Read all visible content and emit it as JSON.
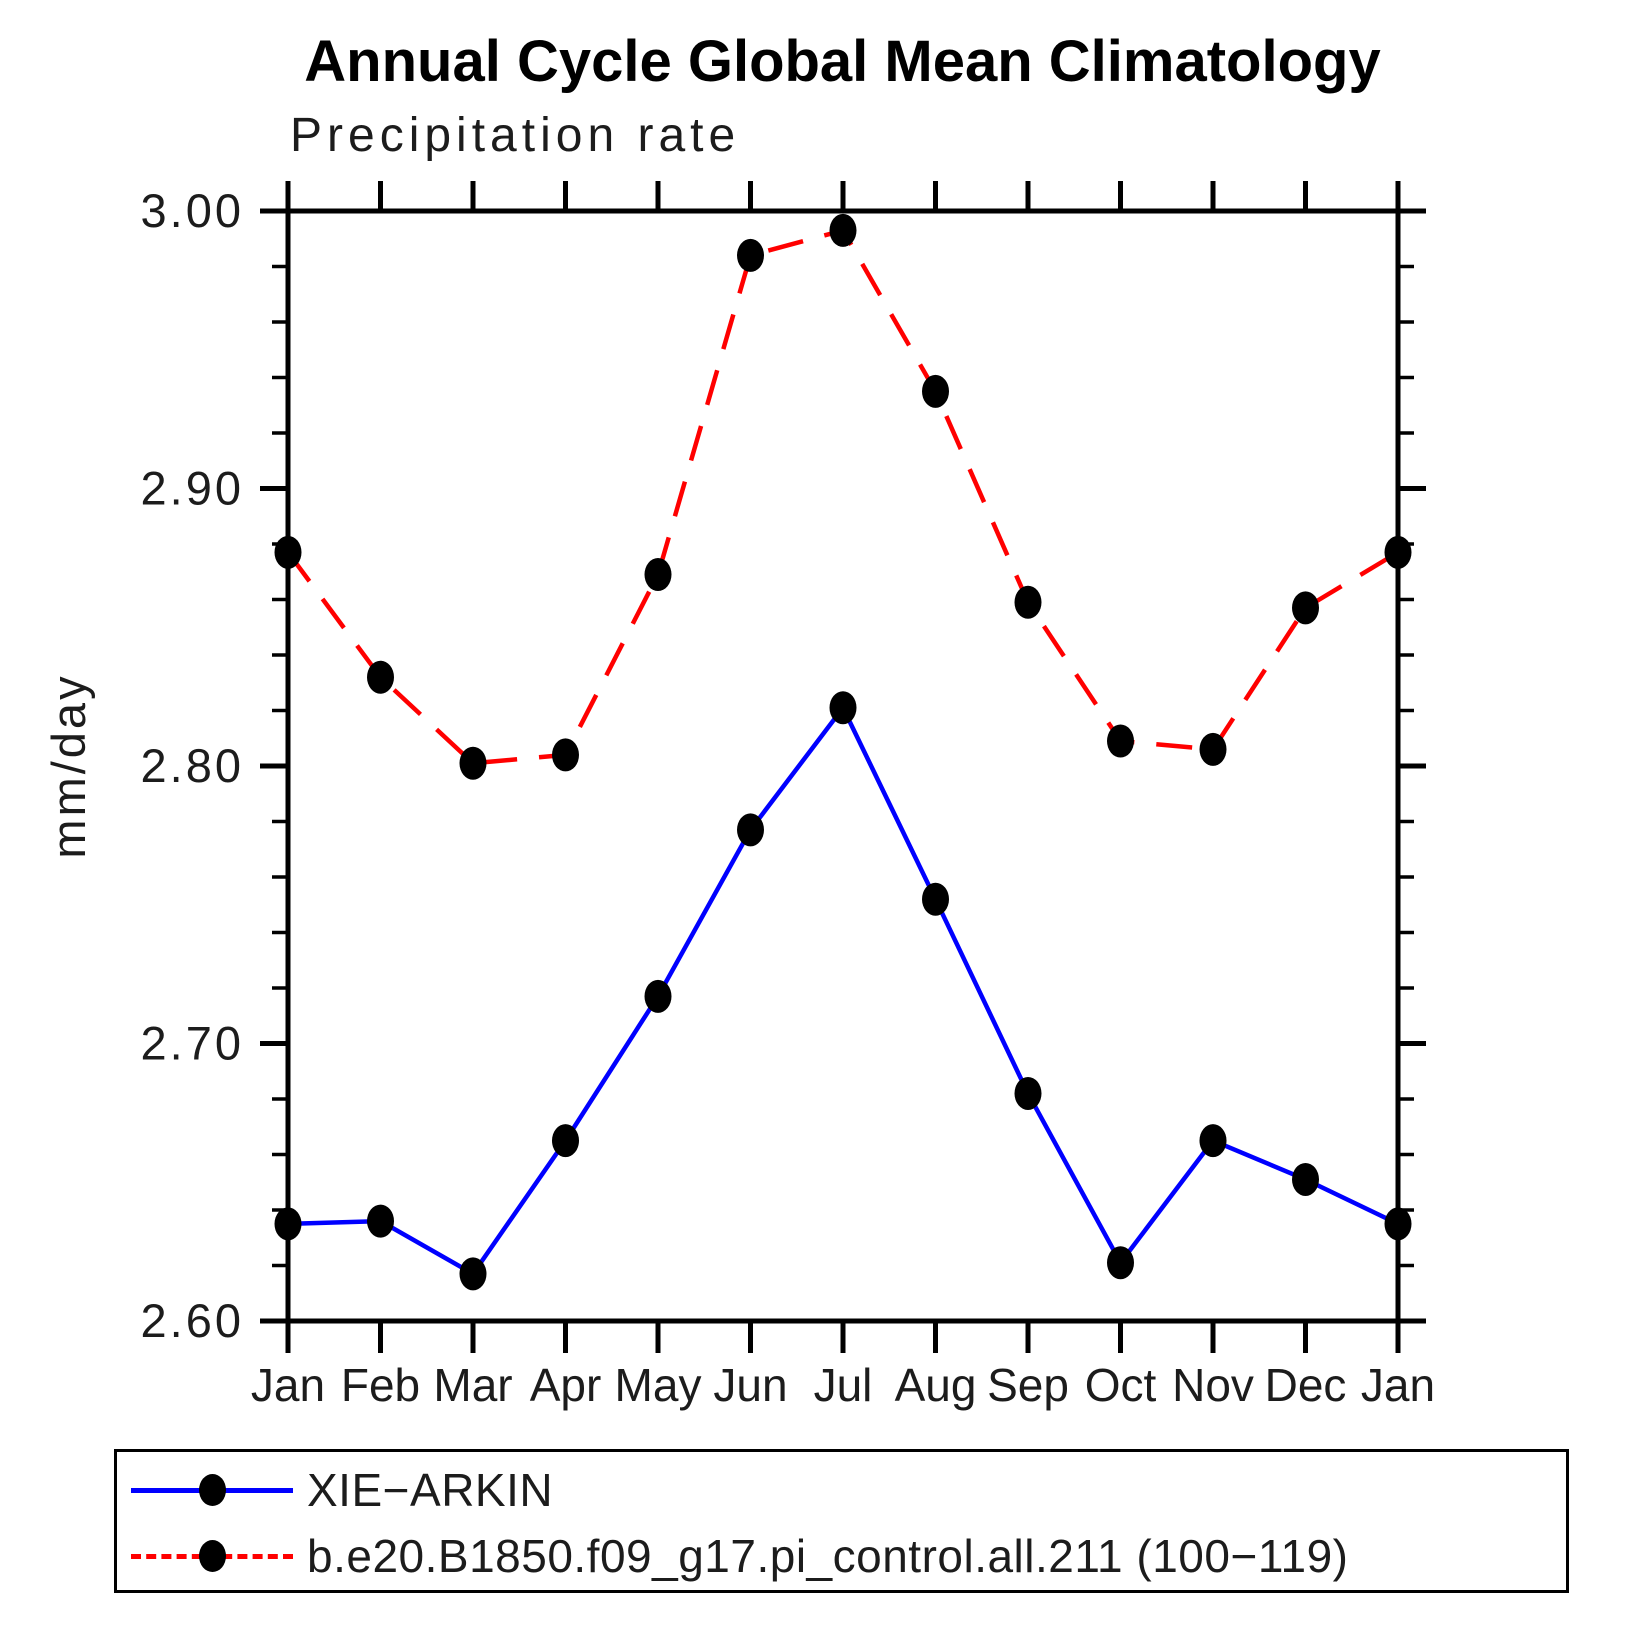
{
  "page": {
    "title": "Annual Cycle Global Mean Climatology",
    "subtitle": "Precipitation rate"
  },
  "chart_data": {
    "type": "line",
    "title": "Annual Cycle Global Mean Climatology",
    "subtitle": "Precipitation rate",
    "ylabel": "mm/day",
    "xlabel": "",
    "categories": [
      "Jan",
      "Feb",
      "Mar",
      "Apr",
      "May",
      "Jun",
      "Jul",
      "Aug",
      "Sep",
      "Oct",
      "Nov",
      "Dec",
      "Jan"
    ],
    "series": [
      {
        "name": "XIE−ARKIN",
        "color": "#0000ff",
        "line_style": "solid",
        "values": [
          2.635,
          2.636,
          2.617,
          2.665,
          2.717,
          2.777,
          2.821,
          2.752,
          2.682,
          2.621,
          2.665,
          2.651,
          2.635
        ]
      },
      {
        "name": "b.e20.B1850.f09_g17.pi_control.all.211 (100−119)",
        "color": "#ff0000",
        "line_style": "dashed",
        "values": [
          2.877,
          2.832,
          2.801,
          2.804,
          2.869,
          2.984,
          2.993,
          2.935,
          2.859,
          2.809,
          2.806,
          2.857,
          2.877
        ]
      }
    ],
    "ylim": [
      2.6,
      3.0
    ],
    "ytick_major_step": 0.1,
    "ytick_minor_step": 0.02,
    "ytick_labels": [
      "3.00",
      "2.90",
      "2.80",
      "2.70",
      "2.60"
    ],
    "marker": "filled-circle",
    "marker_color": "#000000",
    "axis_color": "#000000",
    "grid": false,
    "legend_position": "bottom-left"
  }
}
